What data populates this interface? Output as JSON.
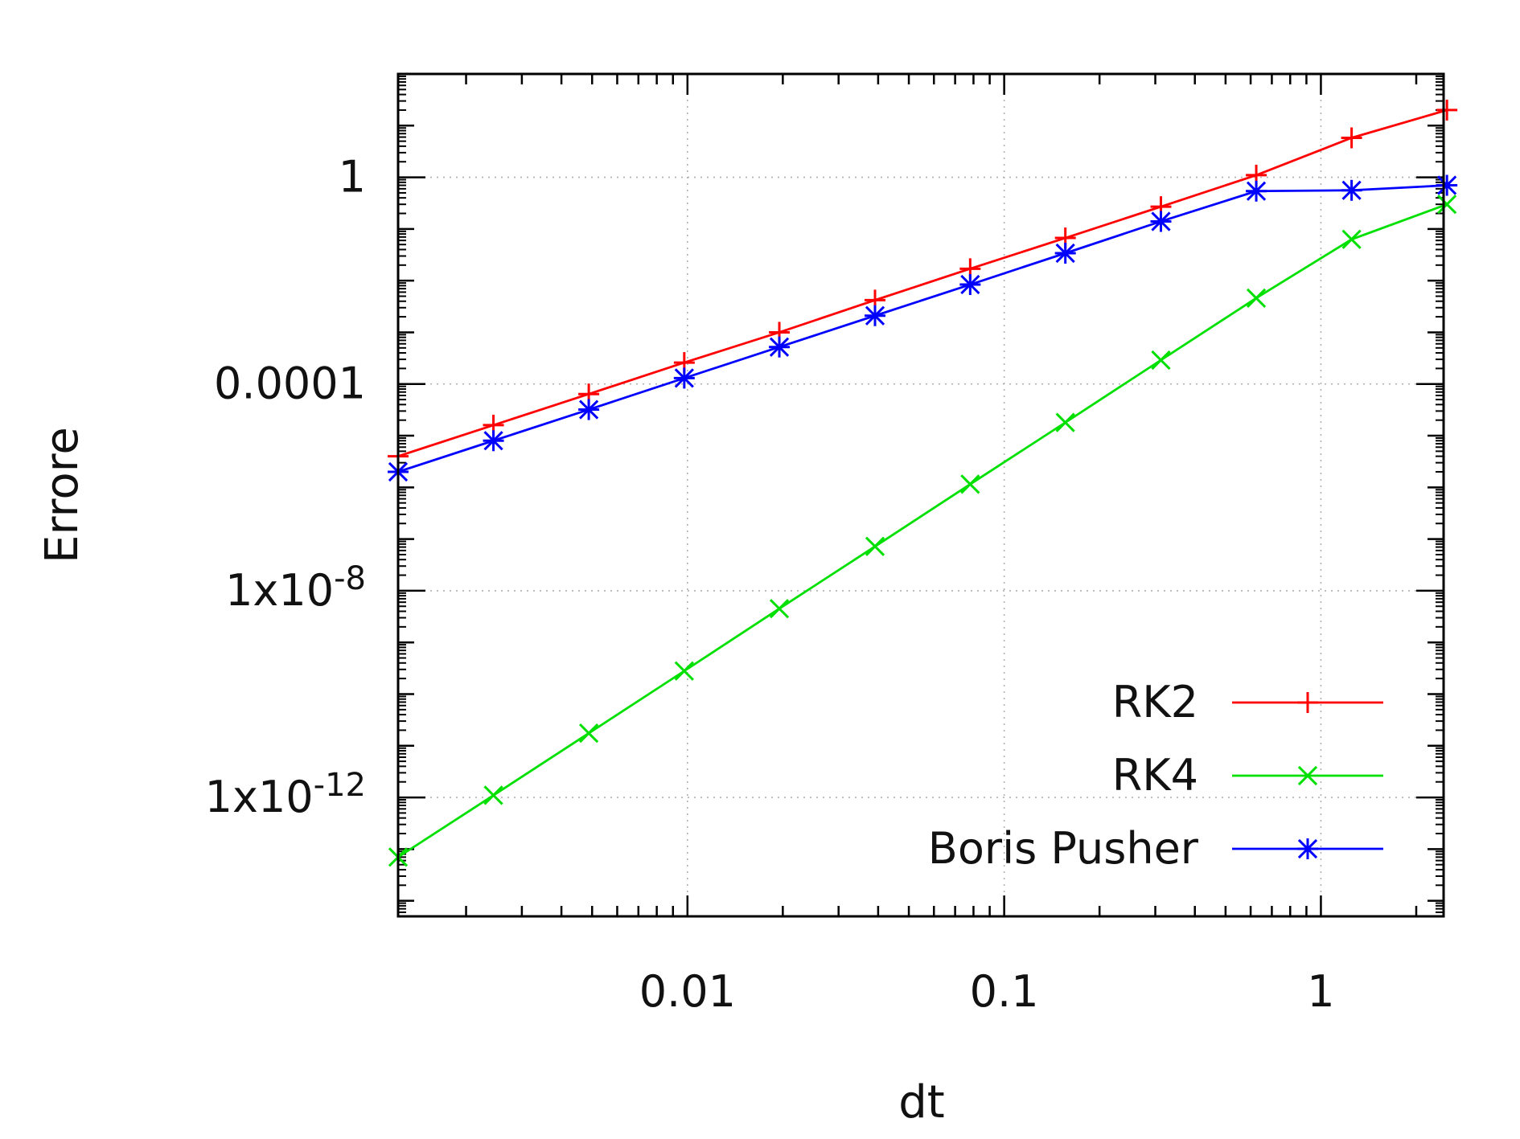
{
  "chart_data": {
    "type": "line",
    "xlabel": "dt",
    "ylabel": "Errore",
    "xscale": "log",
    "yscale": "log",
    "xlim": [
      0.00122,
      2.44
    ],
    "ylim": [
      5e-15,
      100
    ],
    "grid": true,
    "legend_position": "bottom-right",
    "x_ticks": [
      {
        "value": 0.01,
        "label": "0.01"
      },
      {
        "value": 0.1,
        "label": "0.1"
      },
      {
        "value": 1,
        "label": "1"
      }
    ],
    "y_ticks": [
      {
        "value": 1,
        "base": "1",
        "exp": ""
      },
      {
        "value": 0.0001,
        "base": "0.0001",
        "exp": ""
      },
      {
        "value": 1e-08,
        "base": "1x10",
        "exp": "-8"
      },
      {
        "value": 1e-12,
        "base": "1x10",
        "exp": "-12"
      }
    ],
    "x": [
      0.00122,
      0.00244,
      0.00488,
      0.00977,
      0.0195,
      0.0391,
      0.0781,
      0.156,
      0.3125,
      0.625,
      1.25,
      2.5
    ],
    "series": [
      {
        "name": "RK2",
        "color": "#ff0000",
        "marker": "plus",
        "values": [
          4e-06,
          1.6e-05,
          6.4e-05,
          0.00026,
          0.001,
          0.0042,
          0.017,
          0.067,
          0.27,
          1.1,
          5.8,
          20
        ]
      },
      {
        "name": "RK4",
        "color": "#00e000",
        "marker": "x",
        "values": [
          7e-14,
          1.1e-12,
          1.75e-11,
          2.8e-10,
          4.5e-09,
          7.2e-08,
          1.15e-06,
          1.8e-05,
          0.00029,
          0.0046,
          0.063,
          0.3
        ]
      },
      {
        "name": "Boris Pusher",
        "color": "#0000ff",
        "marker": "star",
        "values": [
          2e-06,
          8e-06,
          3.2e-05,
          0.00013,
          0.00052,
          0.0021,
          0.0084,
          0.034,
          0.14,
          0.54,
          0.56,
          0.7
        ]
      }
    ]
  }
}
